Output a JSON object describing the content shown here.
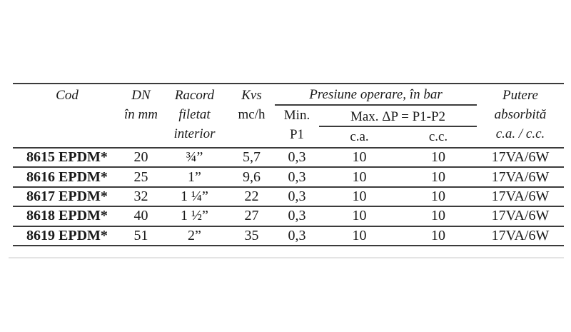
{
  "table": {
    "header": {
      "cod": "Cod",
      "dn_line1": "DN",
      "dn_line2": "în mm",
      "racord_line1": "Racord",
      "racord_line2": "filetat",
      "racord_line3": "interior",
      "kvs_line1": "Kvs",
      "kvs_line2": "mc/h",
      "presiune_group": "Presiune operare, în bar",
      "min_line1": "Min.",
      "min_line2": "P1",
      "max_group": "Max. ΔP = P1-P2",
      "ca": "c.a.",
      "cc": "c.c.",
      "putere_line1": "Putere",
      "putere_line2": "absorbită",
      "putere_line3": "c.a. / c.c."
    },
    "rows": [
      {
        "cod": "8615 EPDM*",
        "dn": "20",
        "racord": "¾”",
        "kvs": "5,7",
        "min_p1": "0,3",
        "max_ca": "10",
        "max_cc": "10",
        "putere": "17VA/6W"
      },
      {
        "cod": "8616 EPDM*",
        "dn": "25",
        "racord": "1”",
        "kvs": "9,6",
        "min_p1": "0,3",
        "max_ca": "10",
        "max_cc": "10",
        "putere": "17VA/6W"
      },
      {
        "cod": "8617 EPDM*",
        "dn": "32",
        "racord": "1 ¼”",
        "kvs": "22",
        "min_p1": "0,3",
        "max_ca": "10",
        "max_cc": "10",
        "putere": "17VA/6W"
      },
      {
        "cod": "8618 EPDM*",
        "dn": "40",
        "racord": "1 ½”",
        "kvs": "27",
        "min_p1": "0,3",
        "max_ca": "10",
        "max_cc": "10",
        "putere": "17VA/6W"
      },
      {
        "cod": "8619 EPDM*",
        "dn": "51",
        "racord": "2”",
        "kvs": "35",
        "min_p1": "0,3",
        "max_ca": "10",
        "max_cc": "10",
        "putere": "17VA/6W"
      }
    ],
    "colors": {
      "text": "#1a1a1a",
      "rule": "#3b3b3b",
      "faint_rule": "#e4e4e4",
      "background": "#ffffff"
    }
  }
}
